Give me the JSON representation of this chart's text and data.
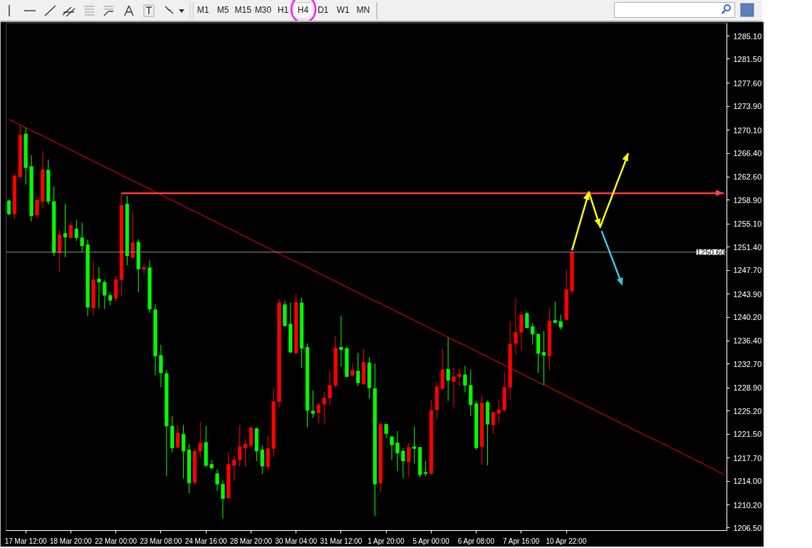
{
  "chart_data": {
    "type": "candlestick",
    "categories": [
      null,
      null,
      null,
      "17 Mar 12:00",
      null,
      null,
      null,
      null,
      null,
      null,
      null,
      "18 Mar 20:00",
      null,
      null,
      null,
      null,
      null,
      null,
      null,
      "22 Mar 00:00",
      null,
      null,
      null,
      null,
      null,
      null,
      null,
      "23 Mar 08:00",
      null,
      null,
      null,
      null,
      null,
      null,
      null,
      "24 Mar 16:00",
      null,
      null,
      null,
      null,
      null,
      null,
      null,
      "28 Mar 20:00",
      null,
      null,
      null,
      null,
      null,
      null,
      null,
      "30 Mar 04:00",
      null,
      null,
      null,
      null,
      null,
      null,
      null,
      "31 Mar 12:00",
      null,
      null,
      null,
      null,
      null,
      null,
      null,
      "1 Apr 20:00",
      null,
      null,
      null,
      null,
      null,
      null,
      null,
      "5 Apr 00:00",
      null,
      null,
      null,
      null,
      null,
      null,
      null,
      "6 Apr 08:00",
      null,
      null,
      null,
      null,
      null,
      null,
      null,
      "7 Apr 16:00",
      null,
      null,
      null,
      null,
      null,
      null,
      null,
      "10 Apr 22:00",
      null,
      null,
      null,
      null,
      null,
      null,
      null,
      null,
      null,
      null,
      null,
      null,
      null,
      null,
      null,
      null,
      null,
      null,
      null,
      null,
      null,
      null,
      null,
      null,
      null,
      null,
      null,
      null
    ],
    "ohlc": [
      [
        1258.8,
        1259.0,
        1256.5,
        1256.7
      ],
      [
        1256.7,
        1263.1,
        1255.9,
        1262.8
      ],
      [
        1262.6,
        1270.9,
        1262.5,
        1269.3
      ],
      [
        1269.5,
        1270.5,
        1261.4,
        1264.1
      ],
      [
        1264.3,
        1266.1,
        1255.5,
        1256.4
      ],
      [
        1256.5,
        1259.4,
        1256.0,
        1258.9
      ],
      [
        1258.7,
        1266.7,
        1257.6,
        1263.8
      ],
      [
        1263.7,
        1265.4,
        1258.2,
        1258.7
      ],
      [
        1258.7,
        1261.1,
        1250.0,
        1250.5
      ],
      [
        1250.5,
        1254.1,
        1247.5,
        1253.4
      ],
      [
        1253.6,
        1258.3,
        1249.8,
        1253.0
      ],
      [
        1252.9,
        1255.4,
        1252.9,
        1254.9
      ],
      [
        1254.3,
        1255.7,
        1252.4,
        1252.9
      ],
      [
        1252.9,
        1255.3,
        1250.7,
        1251.6
      ],
      [
        1251.8,
        1252.6,
        1240.4,
        1241.8
      ],
      [
        1241.7,
        1249.1,
        1240.5,
        1246.2
      ],
      [
        1246.3,
        1248.2,
        1241.6,
        1245.8
      ],
      [
        1245.8,
        1246.2,
        1241.5,
        1243.7
      ],
      [
        1243.7,
        1244.1,
        1242.1,
        1242.9
      ],
      [
        1243.2,
        1246.8,
        1242.7,
        1246.2
      ],
      [
        1246.2,
        1260.1,
        1243.6,
        1258.1
      ],
      [
        1258.3,
        1259.6,
        1248.5,
        1250.0
      ],
      [
        1249.7,
        1256.9,
        1249.7,
        1252.1
      ],
      [
        1252.2,
        1252.7,
        1244.2,
        1247.9
      ],
      [
        1247.9,
        1248.7,
        1247.0,
        1248.2
      ],
      [
        1248.1,
        1249.3,
        1240.9,
        1241.5
      ],
      [
        1241.4,
        1242.3,
        1230.9,
        1234.0
      ],
      [
        1234.1,
        1235.8,
        1229.0,
        1231.3
      ],
      [
        1231.2,
        1231.8,
        1214.8,
        1222.8
      ],
      [
        1222.8,
        1224.4,
        1218.6,
        1219.3
      ],
      [
        1219.4,
        1223.0,
        1219.3,
        1221.7
      ],
      [
        1221.5,
        1223.0,
        1214.4,
        1218.8
      ],
      [
        1219.0,
        1219.9,
        1212.1,
        1213.7
      ],
      [
        1213.8,
        1219.2,
        1213.4,
        1218.8
      ],
      [
        1218.8,
        1223.4,
        1217.7,
        1220.1
      ],
      [
        1220.2,
        1222.8,
        1216.3,
        1216.5
      ],
      [
        1216.7,
        1217.4,
        1215.9,
        1216.1
      ],
      [
        1215.2,
        1215.9,
        1212.4,
        1213.5
      ],
      [
        1213.5,
        1214.1,
        1208.0,
        1211.2
      ],
      [
        1211.3,
        1218.5,
        1211.2,
        1216.7
      ],
      [
        1216.5,
        1218.1,
        1214.0,
        1217.4
      ],
      [
        1217.4,
        1223.0,
        1216.3,
        1219.5
      ],
      [
        1219.3,
        1220.6,
        1216.3,
        1219.9
      ],
      [
        1219.7,
        1222.8,
        1219.4,
        1222.5
      ],
      [
        1222.4,
        1222.6,
        1217.2,
        1218.8
      ],
      [
        1219.0,
        1219.7,
        1215.1,
        1216.4
      ],
      [
        1216.3,
        1221.2,
        1215.8,
        1219.2
      ],
      [
        1219.2,
        1228.8,
        1217.8,
        1226.7
      ],
      [
        1226.7,
        1243.1,
        1225.7,
        1242.5
      ],
      [
        1242.2,
        1242.8,
        1238.8,
        1238.8
      ],
      [
        1239.1,
        1242.5,
        1234.5,
        1234.6
      ],
      [
        1234.5,
        1243.9,
        1234.4,
        1242.6
      ],
      [
        1242.5,
        1243.3,
        1232.1,
        1235.2
      ],
      [
        1235.4,
        1236.0,
        1222.6,
        1225.3
      ],
      [
        1225.2,
        1228.5,
        1224.1,
        1224.8
      ],
      [
        1224.9,
        1226.5,
        1223.2,
        1226.2
      ],
      [
        1226.3,
        1228.3,
        1223.2,
        1227.3
      ],
      [
        1227.3,
        1231.6,
        1226.1,
        1229.3
      ],
      [
        1229.3,
        1237.2,
        1228.9,
        1235.3
      ],
      [
        1235.4,
        1240.4,
        1232.3,
        1235.0
      ],
      [
        1235.2,
        1235.5,
        1230.6,
        1230.7
      ],
      [
        1230.9,
        1232.8,
        1230.7,
        1231.7
      ],
      [
        1231.6,
        1234.5,
        1229.2,
        1229.7
      ],
      [
        1229.5,
        1235.1,
        1229.4,
        1233.0
      ],
      [
        1232.9,
        1233.8,
        1227.2,
        1228.9
      ],
      [
        1228.8,
        1232.8,
        1208.4,
        1213.5
      ],
      [
        1213.7,
        1223.4,
        1212.3,
        1223.1
      ],
      [
        1223.1,
        1223.1,
        1220.9,
        1221.6
      ],
      [
        1221.1,
        1221.1,
        1217.4,
        1219.8
      ],
      [
        1220.1,
        1222.0,
        1215.6,
        1218.5
      ],
      [
        1218.8,
        1219.3,
        1214.5,
        1217.2
      ],
      [
        1217.1,
        1220.1,
        1214.7,
        1219.4
      ],
      [
        1219.5,
        1222.7,
        1216.8,
        1219.2
      ],
      [
        1219.4,
        1219.5,
        1214.6,
        1215.0
      ],
      [
        1215.4,
        1217.2,
        1214.8,
        1215.2
      ],
      [
        1215.2,
        1227.0,
        1214.9,
        1225.3
      ],
      [
        1225.4,
        1229.8,
        1224.0,
        1229.1
      ],
      [
        1228.8,
        1235.1,
        1228.6,
        1231.8
      ],
      [
        1231.9,
        1236.9,
        1226.8,
        1230.1
      ],
      [
        1229.9,
        1232.1,
        1225.7,
        1230.7
      ],
      [
        1230.7,
        1232.0,
        1229.2,
        1231.1
      ],
      [
        1231.0,
        1232.4,
        1228.2,
        1229.3
      ],
      [
        1229.3,
        1231.8,
        1224.4,
        1226.2
      ],
      [
        1226.4,
        1226.8,
        1219.0,
        1219.3
      ],
      [
        1219.5,
        1227.7,
        1216.6,
        1226.5
      ],
      [
        1226.6,
        1226.9,
        1216.5,
        1223.1
      ],
      [
        1223.0,
        1225.1,
        1221.6,
        1225.0
      ],
      [
        1224.8,
        1227.1,
        1223.3,
        1225.4
      ],
      [
        1225.4,
        1231.3,
        1225.0,
        1229.0
      ],
      [
        1229.0,
        1239.5,
        1227.0,
        1235.9
      ],
      [
        1236.0,
        1243.3,
        1234.3,
        1237.8
      ],
      [
        1237.8,
        1241.1,
        1234.9,
        1240.6
      ],
      [
        1240.8,
        1241.1,
        1238.5,
        1238.5
      ],
      [
        1238.7,
        1239.2,
        1235.8,
        1237.5
      ],
      [
        1237.5,
        1237.5,
        1231.3,
        1234.4
      ],
      [
        1234.6,
        1238.0,
        1229.4,
        1234.1
      ],
      [
        1234.0,
        1241.6,
        1231.7,
        1239.6
      ],
      [
        1239.7,
        1242.7,
        1239.3,
        1239.3
      ],
      [
        1239.5,
        1240.6,
        1238.2,
        1238.6
      ],
      [
        1239.8,
        1247.8,
        1239.8,
        1244.6
      ],
      [
        1244.4,
        1250.8,
        1243.9,
        1250.6
      ],
      null,
      null,
      null,
      null,
      null,
      null,
      null,
      null,
      null,
      null,
      null,
      null,
      null,
      null,
      null,
      null,
      null,
      null,
      null,
      null,
      null,
      null,
      null,
      null,
      null,
      null,
      null
    ],
    "colors": [
      "#00ff00",
      "#ff0000",
      "#ff0000",
      "#00ff00",
      "#00ff00",
      "#ff0000",
      "#ff0000",
      "#00ff00",
      "#00ff00",
      "#ff0000",
      "#00ff00",
      "#ff0000",
      "#00ff00",
      "#00ff00",
      "#00ff00",
      "#ff0000",
      "#00ff00",
      "#00ff00",
      "#00ff00",
      "#ff0000",
      "#ff0000",
      "#00ff00",
      "#ff0000",
      "#00ff00",
      "#ff0000",
      "#00ff00",
      "#00ff00",
      "#00ff00",
      "#00ff00",
      "#00ff00",
      "#ff0000",
      "#00ff00",
      "#00ff00",
      "#ff0000",
      "#ff0000",
      "#00ff00",
      "#00ff00",
      "#00ff00",
      "#00ff00",
      "#ff0000",
      "#ff0000",
      "#ff0000",
      "#ff0000",
      "#ff0000",
      "#00ff00",
      "#00ff00",
      "#ff0000",
      "#ff0000",
      "#ff0000",
      "#00ff00",
      "#00ff00",
      "#ff0000",
      "#00ff00",
      "#00ff00",
      "#00ff00",
      "#ff0000",
      "#ff0000",
      "#ff0000",
      "#ff0000",
      "#00ff00",
      "#00ff00",
      "#ff0000",
      "#00ff00",
      "#ff0000",
      "#00ff00",
      "#00ff00",
      "#ff0000",
      "#00ff00",
      "#00ff00",
      "#00ff00",
      "#00ff00",
      "#ff0000",
      "#00ff00",
      "#00ff00",
      "#00ff00",
      "#ff0000",
      "#ff0000",
      "#ff0000",
      "#00ff00",
      "#ff0000",
      "#ff0000",
      "#00ff00",
      "#00ff00",
      "#00ff00",
      "#ff0000",
      "#00ff00",
      "#ff0000",
      "#ff0000",
      "#ff0000",
      "#ff0000",
      "#ff0000",
      "#ff0000",
      "#00ff00",
      "#00ff00",
      "#00ff00",
      "#00ff00",
      "#ff0000",
      "#00ff00",
      "#00ff00",
      "#ff0000",
      "#ff0000",
      null,
      null,
      null,
      null,
      null,
      null,
      null,
      null,
      null,
      null,
      null,
      null,
      null,
      null,
      null,
      null,
      null,
      null,
      null,
      null,
      null,
      null,
      null,
      null,
      null,
      null,
      null
    ],
    "series": [
      {
        "type": "line",
        "color": "#ff0000",
        "values": [
          1271.8,
          1271.4,
          1270.9,
          1270.5,
          1270.0,
          1269.6,
          1269.2,
          1268.7,
          1268.3,
          1267.8,
          1267.4,
          1266.9,
          1266.5,
          1266.0,
          1265.6,
          1265.1,
          1264.7,
          1264.2,
          1263.8,
          1263.4,
          1262.9,
          1262.5,
          1262.0,
          1261.6,
          1261.1,
          1260.7,
          1260.2,
          1259.8,
          1259.3,
          1258.9,
          1258.4,
          1258.0,
          1257.5,
          1257.1,
          1256.7,
          1256.2,
          1255.8,
          1255.3,
          1254.9,
          1254.4,
          1254.0,
          1253.5,
          1253.1,
          1252.6,
          1252.2,
          1251.7,
          1251.3,
          1250.8,
          1250.4,
          1249.9,
          1249.5,
          1249.1,
          1248.6,
          1248.2,
          1247.7,
          1247.3,
          1246.8,
          1246.4,
          1245.9,
          1245.5,
          1245.0,
          1244.6,
          1244.1,
          1243.7,
          1243.2,
          1242.8,
          1242.4,
          1241.9,
          1241.5,
          1241.0,
          1240.6,
          1240.1,
          1239.7,
          1239.2,
          1238.8,
          1238.3,
          1237.9,
          1237.4,
          1237.0,
          1236.5,
          1236.1,
          1235.7,
          1235.2,
          1234.8,
          1234.3,
          1233.9,
          1233.4,
          1233.0,
          1232.5,
          1232.1,
          1231.6,
          1231.2,
          1230.7,
          1230.3,
          1229.8,
          1229.4,
          1229.0,
          1228.5,
          1228.1,
          1227.6,
          1227.2,
          1226.7,
          1226.3,
          1225.8,
          1225.4,
          1224.9,
          1224.5,
          1224.0,
          1223.6,
          1223.1,
          1222.7,
          1222.2,
          1221.8,
          1221.3,
          1220.9,
          1220.5,
          1220.0,
          1219.6,
          1219.1,
          1218.7,
          1218.2,
          1217.8,
          1217.3,
          1216.9,
          1216.4,
          1216.0,
          1215.5,
          1215.1
        ]
      },
      {
        "type": "line",
        "color": "#ff3b3b",
        "values": [
          null,
          null,
          null,
          null,
          null,
          null,
          null,
          null,
          null,
          null,
          null,
          null,
          null,
          null,
          null,
          null,
          null,
          null,
          null,
          null,
          1260.0,
          1260.0,
          1260.0,
          1260.0,
          1260.0,
          1260.0,
          1260.0,
          1260.0,
          1260.0,
          1260.0,
          1260.0,
          1260.0,
          1260.0,
          1260.0,
          1260.0,
          1260.0,
          1260.0,
          1260.0,
          1260.0,
          1260.0,
          1260.0,
          1260.0,
          1260.0,
          1260.0,
          1260.0,
          1260.0,
          1260.0,
          1260.0,
          1260.0,
          1260.0,
          1260.0,
          1260.0,
          1260.0,
          1260.0,
          1260.0,
          1260.0,
          1260.0,
          1260.0,
          1260.0,
          1260.0,
          1260.0,
          1260.0,
          1260.0,
          1260.0,
          1260.0,
          1260.0,
          1260.0,
          1260.0,
          1260.0,
          1260.0,
          1260.0,
          1260.0,
          1260.0,
          1260.0,
          1260.0,
          1260.0,
          1260.0,
          1260.0,
          1260.0,
          1260.0,
          1260.0,
          1260.0,
          1260.0,
          1260.0,
          1260.0,
          1260.0,
          1260.0,
          1260.0,
          1260.0,
          1260.0,
          1260.0,
          1260.0,
          1260.0,
          1260.0,
          1260.0,
          1260.0,
          1260.0,
          1260.0,
          1260.0,
          1260.0,
          1260.0,
          1260.0,
          1260.0,
          1260.0,
          1260.0,
          1260.0,
          1260.0,
          1260.0,
          1260.0,
          1260.0,
          1260.0,
          1260.0,
          1260.0,
          1260.0,
          1260.0,
          1260.0,
          1260.0,
          1260.0,
          1260.0,
          1260.0,
          1260.0,
          1260.0,
          1260.0,
          1260.0,
          1260.0,
          1260.0,
          1260.0,
          1260.0
        ]
      },
      {
        "type": "line",
        "color": "#ffff00",
        "values": [
          null,
          null,
          null,
          null,
          null,
          null,
          null,
          null,
          null,
          null,
          null,
          null,
          null,
          null,
          null,
          null,
          null,
          null,
          null,
          null,
          null,
          null,
          null,
          null,
          null,
          null,
          null,
          null,
          null,
          null,
          null,
          null,
          null,
          null,
          null,
          null,
          null,
          null,
          null,
          null,
          null,
          null,
          null,
          null,
          null,
          null,
          null,
          null,
          null,
          null,
          null,
          null,
          null,
          null,
          null,
          null,
          null,
          null,
          null,
          null,
          null,
          null,
          null,
          null,
          null,
          null,
          null,
          null,
          null,
          null,
          null,
          null,
          null,
          null,
          null,
          null,
          null,
          null,
          null,
          null,
          null,
          null,
          null,
          null,
          null,
          null,
          null,
          null,
          null,
          null,
          null,
          null,
          null,
          null,
          null,
          null,
          null,
          null,
          null,
          null,
          1250.9,
          1254.0,
          1257.1,
          1260.2,
          1257.4,
          1254.6,
          1257.0,
          1259.3,
          1261.7,
          1264.0,
          1266.4,
          null,
          null,
          null,
          null,
          null,
          null,
          null,
          null,
          null,
          null,
          null,
          null,
          null,
          null,
          null,
          null,
          null
        ]
      }
    ],
    "ref_lines": [
      {
        "axis": "y",
        "value": 1250.6,
        "label": "1250.60",
        "color": "#8c8c8c"
      }
    ],
    "ylim": [
      1206.1,
      1287.2
    ],
    "yticks": [
      {
        "value": 1285.1,
        "label": "1285.10"
      },
      {
        "value": 1281.5,
        "label": "1281.50"
      },
      {
        "value": 1277.6,
        "label": "1277.60"
      },
      {
        "value": 1273.9,
        "label": "1273.90"
      },
      {
        "value": 1270.1,
        "label": "1270.10"
      },
      {
        "value": 1266.4,
        "label": "1266.40"
      },
      {
        "value": 1262.6,
        "label": "1262.60"
      },
      {
        "value": 1258.9,
        "label": "1258.90"
      },
      {
        "value": 1255.1,
        "label": "1255.10"
      },
      {
        "value": 1251.4,
        "label": "1251.40"
      },
      {
        "value": 1247.7,
        "label": "1247.70"
      },
      {
        "value": 1243.9,
        "label": "1243.90"
      },
      {
        "value": 1240.2,
        "label": "1240.20"
      },
      {
        "value": 1236.4,
        "label": "1236.40"
      },
      {
        "value": 1232.7,
        "label": "1232.70"
      },
      {
        "value": 1228.9,
        "label": "1228.90"
      },
      {
        "value": 1225.2,
        "label": "1225.20"
      },
      {
        "value": 1221.5,
        "label": "1221.50"
      },
      {
        "value": 1217.7,
        "label": "1217.70"
      },
      {
        "value": 1214.0,
        "label": "1214.00"
      },
      {
        "value": 1210.2,
        "label": "1210.20"
      },
      {
        "value": 1206.5,
        "label": "1206.50"
      }
    ],
    "grid": false,
    "annotations": [
      "M1",
      "M5",
      "M15",
      "M30",
      "H1",
      "H4",
      "D1",
      "W1",
      "MN"
    ]
  }
}
